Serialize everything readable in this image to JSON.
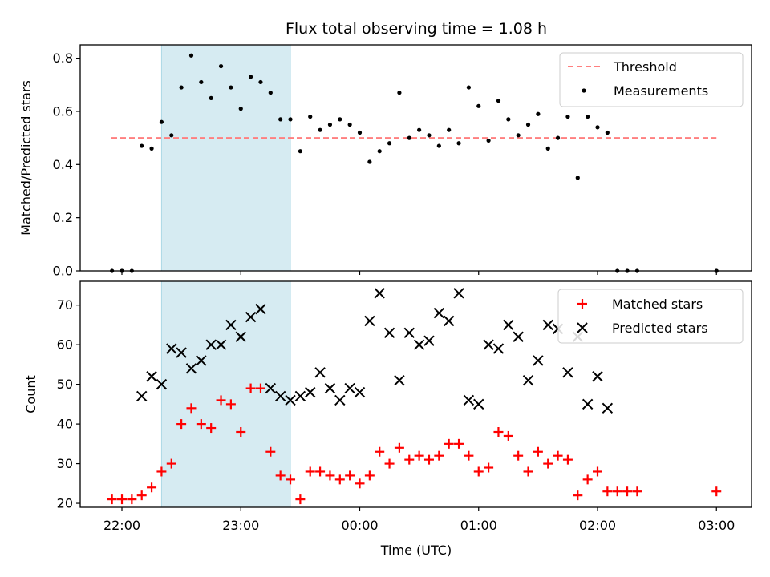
{
  "chart_data": [
    {
      "type": "scatter",
      "title": "Flux total observing time = 1.08 h",
      "xlabel": "",
      "ylabel": "Matched/Predicted stars",
      "ylim": [
        0,
        0.85
      ],
      "yticks": [
        "0.0",
        "0.2",
        "0.4",
        "0.6",
        "0.8"
      ],
      "shaded_x_range": [
        "22:20",
        "23:25"
      ],
      "threshold": {
        "name": "Threshold",
        "y": 0.5,
        "x": [
          "22:00",
          "03:00"
        ],
        "color": "#ff7f7f",
        "style": "dashed"
      },
      "series": [
        {
          "name": "Measurements",
          "color": "#000000",
          "marker": "dot",
          "points": [
            [
              "21:55",
              0.0
            ],
            [
              "22:00",
              0.0
            ],
            [
              "22:05",
              0.0
            ],
            [
              "22:10",
              0.47
            ],
            [
              "22:15",
              0.46
            ],
            [
              "22:20",
              0.56
            ],
            [
              "22:25",
              0.51
            ],
            [
              "22:30",
              0.69
            ],
            [
              "22:35",
              0.81
            ],
            [
              "22:40",
              0.71
            ],
            [
              "22:45",
              0.65
            ],
            [
              "22:50",
              0.77
            ],
            [
              "22:55",
              0.69
            ],
            [
              "23:00",
              0.61
            ],
            [
              "23:05",
              0.73
            ],
            [
              "23:10",
              0.71
            ],
            [
              "23:15",
              0.67
            ],
            [
              "23:20",
              0.57
            ],
            [
              "23:25",
              0.57
            ],
            [
              "23:30",
              0.45
            ],
            [
              "23:35",
              0.58
            ],
            [
              "23:40",
              0.53
            ],
            [
              "23:45",
              0.55
            ],
            [
              "23:50",
              0.57
            ],
            [
              "23:55",
              0.55
            ],
            [
              "00:00",
              0.52
            ],
            [
              "00:05",
              0.41
            ],
            [
              "00:10",
              0.45
            ],
            [
              "00:15",
              0.48
            ],
            [
              "00:20",
              0.67
            ],
            [
              "00:25",
              0.5
            ],
            [
              "00:30",
              0.53
            ],
            [
              "00:35",
              0.51
            ],
            [
              "00:40",
              0.47
            ],
            [
              "00:45",
              0.53
            ],
            [
              "00:50",
              0.48
            ],
            [
              "00:55",
              0.69
            ],
            [
              "01:00",
              0.62
            ],
            [
              "01:05",
              0.49
            ],
            [
              "01:10",
              0.64
            ],
            [
              "01:15",
              0.57
            ],
            [
              "01:20",
              0.51
            ],
            [
              "01:25",
              0.55
            ],
            [
              "01:30",
              0.59
            ],
            [
              "01:35",
              0.46
            ],
            [
              "01:40",
              0.5
            ],
            [
              "01:45",
              0.58
            ],
            [
              "01:50",
              0.35
            ],
            [
              "01:55",
              0.58
            ],
            [
              "02:00",
              0.54
            ],
            [
              "02:05",
              0.52
            ],
            [
              "02:10",
              0.0
            ],
            [
              "02:15",
              0.0
            ],
            [
              "02:20",
              0.0
            ],
            [
              "03:00",
              0.0
            ]
          ]
        }
      ],
      "legend": {
        "position": "top-right",
        "entries": [
          "Threshold",
          "Measurements"
        ]
      }
    },
    {
      "type": "scatter",
      "title": "",
      "xlabel": "Time (UTC)",
      "ylabel": "Count",
      "ylim": [
        19,
        76
      ],
      "yticks": [
        "20",
        "30",
        "40",
        "50",
        "60",
        "70"
      ],
      "xticks": [
        "22:00",
        "23:00",
        "00:00",
        "01:00",
        "02:00",
        "03:00"
      ],
      "shaded_x_range": [
        "22:20",
        "23:25"
      ],
      "series": [
        {
          "name": "Matched stars",
          "color": "#ff0000",
          "marker": "plus",
          "points": [
            [
              "21:55",
              21
            ],
            [
              "22:00",
              21
            ],
            [
              "22:05",
              21
            ],
            [
              "22:10",
              22
            ],
            [
              "22:15",
              24
            ],
            [
              "22:20",
              28
            ],
            [
              "22:25",
              30
            ],
            [
              "22:30",
              40
            ],
            [
              "22:35",
              44
            ],
            [
              "22:40",
              40
            ],
            [
              "22:45",
              39
            ],
            [
              "22:50",
              46
            ],
            [
              "22:55",
              45
            ],
            [
              "23:00",
              38
            ],
            [
              "23:05",
              49
            ],
            [
              "23:10",
              49
            ],
            [
              "23:15",
              33
            ],
            [
              "23:20",
              27
            ],
            [
              "23:25",
              26
            ],
            [
              "23:30",
              21
            ],
            [
              "23:35",
              28
            ],
            [
              "23:40",
              28
            ],
            [
              "23:45",
              27
            ],
            [
              "23:50",
              26
            ],
            [
              "23:55",
              27
            ],
            [
              "00:00",
              25
            ],
            [
              "00:05",
              27
            ],
            [
              "00:10",
              33
            ],
            [
              "00:15",
              30
            ],
            [
              "00:20",
              34
            ],
            [
              "00:25",
              31
            ],
            [
              "00:30",
              32
            ],
            [
              "00:35",
              31
            ],
            [
              "00:40",
              32
            ],
            [
              "00:45",
              35
            ],
            [
              "00:50",
              35
            ],
            [
              "00:55",
              32
            ],
            [
              "01:00",
              28
            ],
            [
              "01:05",
              29
            ],
            [
              "01:10",
              38
            ],
            [
              "01:15",
              37
            ],
            [
              "01:20",
              32
            ],
            [
              "01:25",
              28
            ],
            [
              "01:30",
              33
            ],
            [
              "01:35",
              30
            ],
            [
              "01:40",
              32
            ],
            [
              "01:45",
              31
            ],
            [
              "01:50",
              22
            ],
            [
              "01:55",
              26
            ],
            [
              "02:00",
              28
            ],
            [
              "02:05",
              23
            ],
            [
              "02:10",
              23
            ],
            [
              "02:15",
              23
            ],
            [
              "02:20",
              23
            ],
            [
              "03:00",
              23
            ]
          ]
        },
        {
          "name": "Predicted stars",
          "color": "#000000",
          "marker": "x",
          "points": [
            [
              "22:10",
              47
            ],
            [
              "22:15",
              52
            ],
            [
              "22:20",
              50
            ],
            [
              "22:25",
              59
            ],
            [
              "22:30",
              58
            ],
            [
              "22:35",
              54
            ],
            [
              "22:40",
              56
            ],
            [
              "22:45",
              60
            ],
            [
              "22:50",
              60
            ],
            [
              "22:55",
              65
            ],
            [
              "23:00",
              62
            ],
            [
              "23:05",
              67
            ],
            [
              "23:10",
              69
            ],
            [
              "23:15",
              49
            ],
            [
              "23:20",
              47
            ],
            [
              "23:25",
              46
            ],
            [
              "23:30",
              47
            ],
            [
              "23:35",
              48
            ],
            [
              "23:40",
              53
            ],
            [
              "23:45",
              49
            ],
            [
              "23:50",
              46
            ],
            [
              "23:55",
              49
            ],
            [
              "00:00",
              48
            ],
            [
              "00:05",
              66
            ],
            [
              "00:10",
              73
            ],
            [
              "00:15",
              63
            ],
            [
              "00:20",
              51
            ],
            [
              "00:25",
              63
            ],
            [
              "00:30",
              60
            ],
            [
              "00:35",
              61
            ],
            [
              "00:40",
              68
            ],
            [
              "00:45",
              66
            ],
            [
              "00:50",
              73
            ],
            [
              "00:55",
              46
            ],
            [
              "01:00",
              45
            ],
            [
              "01:05",
              60
            ],
            [
              "01:10",
              59
            ],
            [
              "01:15",
              65
            ],
            [
              "01:20",
              62
            ],
            [
              "01:25",
              51
            ],
            [
              "01:30",
              56
            ],
            [
              "01:35",
              65
            ],
            [
              "01:40",
              64
            ],
            [
              "01:45",
              53
            ],
            [
              "01:50",
              62
            ],
            [
              "01:55",
              45
            ],
            [
              "02:00",
              52
            ],
            [
              "02:05",
              44
            ]
          ]
        }
      ],
      "legend": {
        "position": "top-right",
        "entries": [
          "Matched stars",
          "Predicted stars"
        ]
      }
    }
  ]
}
